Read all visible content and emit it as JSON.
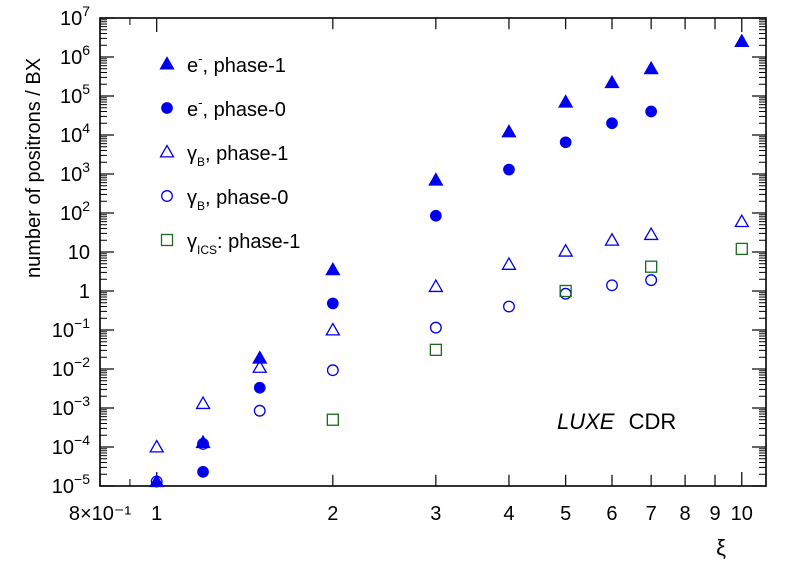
{
  "chart_data": {
    "type": "scatter",
    "title": "",
    "xlabel": "ξ",
    "ylabel": "number of positrons / BX",
    "x_scale": "log",
    "y_scale": "log",
    "xlim": [
      0.8,
      11
    ],
    "ylim": [
      1e-05,
      10000000.0
    ],
    "x_ticks": [
      {
        "value": 0.8,
        "label": "8×10⁻¹"
      },
      {
        "value": 1,
        "label": "1"
      },
      {
        "value": 2,
        "label": "2"
      },
      {
        "value": 3,
        "label": "3"
      },
      {
        "value": 4,
        "label": "4"
      },
      {
        "value": 5,
        "label": "5"
      },
      {
        "value": 6,
        "label": "6"
      },
      {
        "value": 7,
        "label": "7"
      },
      {
        "value": 8,
        "label": "8"
      },
      {
        "value": 9,
        "label": "9"
      },
      {
        "value": 10,
        "label": "10"
      }
    ],
    "y_ticks": [
      {
        "value": 1e-05,
        "base": "10",
        "exp": "−5"
      },
      {
        "value": 0.0001,
        "base": "10",
        "exp": "−4"
      },
      {
        "value": 0.001,
        "base": "10",
        "exp": "−3"
      },
      {
        "value": 0.01,
        "base": "10",
        "exp": "−2"
      },
      {
        "value": 0.1,
        "base": "10",
        "exp": "−1"
      },
      {
        "value": 1,
        "base": "1",
        "exp": ""
      },
      {
        "value": 10,
        "base": "10",
        "exp": ""
      },
      {
        "value": 100.0,
        "base": "10",
        "exp": "2"
      },
      {
        "value": 1000.0,
        "base": "10",
        "exp": "3"
      },
      {
        "value": 10000.0,
        "base": "10",
        "exp": "4"
      },
      {
        "value": 100000.0,
        "base": "10",
        "exp": "5"
      },
      {
        "value": 1000000.0,
        "base": "10",
        "exp": "6"
      },
      {
        "value": 10000000.0,
        "base": "10",
        "exp": "7"
      }
    ],
    "legend_position": "top-left",
    "annotation": {
      "italic": "LUXE",
      "text": "CDR"
    },
    "series": [
      {
        "key": "e-phase1",
        "legend": {
          "base": "e",
          "sup": "-",
          "sub": "",
          "rest": ", phase-1"
        },
        "marker": "triangle",
        "filled": true,
        "color": "#0000ee",
        "x": [
          1,
          1.2,
          1.5,
          2,
          3,
          4,
          5,
          6,
          7,
          10
        ],
        "y": [
          1.3e-05,
          0.00013,
          0.019,
          3.5,
          700,
          12000,
          70000,
          220000,
          500000,
          2500000
        ]
      },
      {
        "key": "e-phase0",
        "legend": {
          "base": "e",
          "sup": "-",
          "sub": "",
          "rest": ", phase-0"
        },
        "marker": "circle",
        "filled": true,
        "color": "#0000ee",
        "x": [
          1.2,
          1.5,
          2,
          3,
          4,
          5,
          6,
          7
        ],
        "y": [
          2.3e-05,
          0.0033,
          0.48,
          85,
          1300,
          6500,
          20000,
          40000
        ]
      },
      {
        "key": "gB-phase1",
        "legend": {
          "base": "γ",
          "sup": "",
          "sub": "B",
          "rest": ", phase-1"
        },
        "marker": "triangle",
        "filled": false,
        "color": "#0000ee",
        "x": [
          1,
          1.2,
          1.5,
          2,
          3,
          4,
          5,
          6,
          7,
          10
        ],
        "y": [
          0.0001,
          0.0013,
          0.011,
          0.1,
          1.3,
          4.8,
          10.5,
          20,
          28,
          60
        ]
      },
      {
        "key": "gB-phase0",
        "legend": {
          "base": "γ",
          "sup": "",
          "sub": "B",
          "rest": ", phase-0"
        },
        "marker": "circle",
        "filled": false,
        "color": "#0000ee",
        "x": [
          1,
          1.2,
          1.5,
          2,
          3,
          4,
          5,
          6,
          7
        ],
        "y": [
          1.3e-05,
          0.00012,
          0.00085,
          0.0093,
          0.115,
          0.4,
          0.85,
          1.4,
          1.9
        ]
      },
      {
        "key": "gICS-phase1",
        "legend": {
          "base": "γ",
          "sup": "",
          "sub": "ICS",
          "rest": ": phase-1"
        },
        "marker": "square",
        "filled": false,
        "color": "#1a6b1a",
        "x": [
          2,
          3,
          5,
          7,
          10
        ],
        "y": [
          0.0005,
          0.031,
          1.0,
          4.2,
          12
        ]
      }
    ]
  }
}
